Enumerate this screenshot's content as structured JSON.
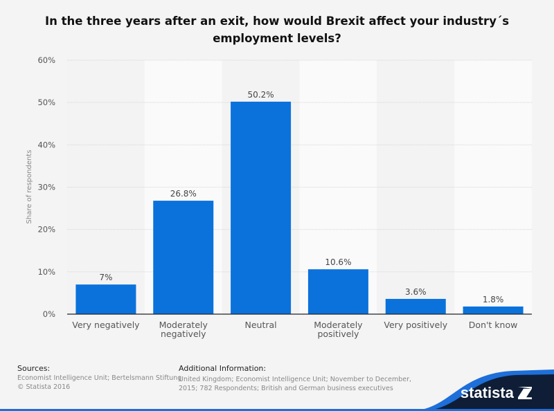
{
  "chart_data": {
    "type": "bar",
    "title": "In the three years after an exit, how would Brexit affect your industry´s employment levels?",
    "ylabel": "Share of respondents",
    "xlabel": "",
    "categories": [
      [
        "Very negatively"
      ],
      [
        "Moderately",
        "negatively"
      ],
      [
        "Neutral"
      ],
      [
        "Moderately",
        "positively"
      ],
      [
        "Very positively"
      ],
      [
        "Don't know"
      ]
    ],
    "values": [
      7,
      26.8,
      50.2,
      10.6,
      3.6,
      1.8
    ],
    "data_labels": [
      "7%",
      "26.8%",
      "50.2%",
      "10.6%",
      "3.6%",
      "1.8%"
    ],
    "ylim": [
      0,
      60
    ],
    "yticks": [
      0,
      10,
      20,
      30,
      40,
      50,
      60
    ],
    "ytick_labels": [
      "0%",
      "10%",
      "20%",
      "30%",
      "40%",
      "50%",
      "60%"
    ],
    "grid": true,
    "bar_color": "#0b72dc"
  },
  "footer": {
    "sources_heading": "Sources:",
    "sources_lines": [
      "Economist Intelligence Unit; Bertelsmann Stiftung",
      "© Statista 2016"
    ],
    "additional_heading": "Additional Information:",
    "additional_lines": [
      "United Kingdom; Economist Intelligence Unit; November to December,",
      "2015; 782 Respondents; British and German business executives"
    ],
    "logo": "statista"
  }
}
